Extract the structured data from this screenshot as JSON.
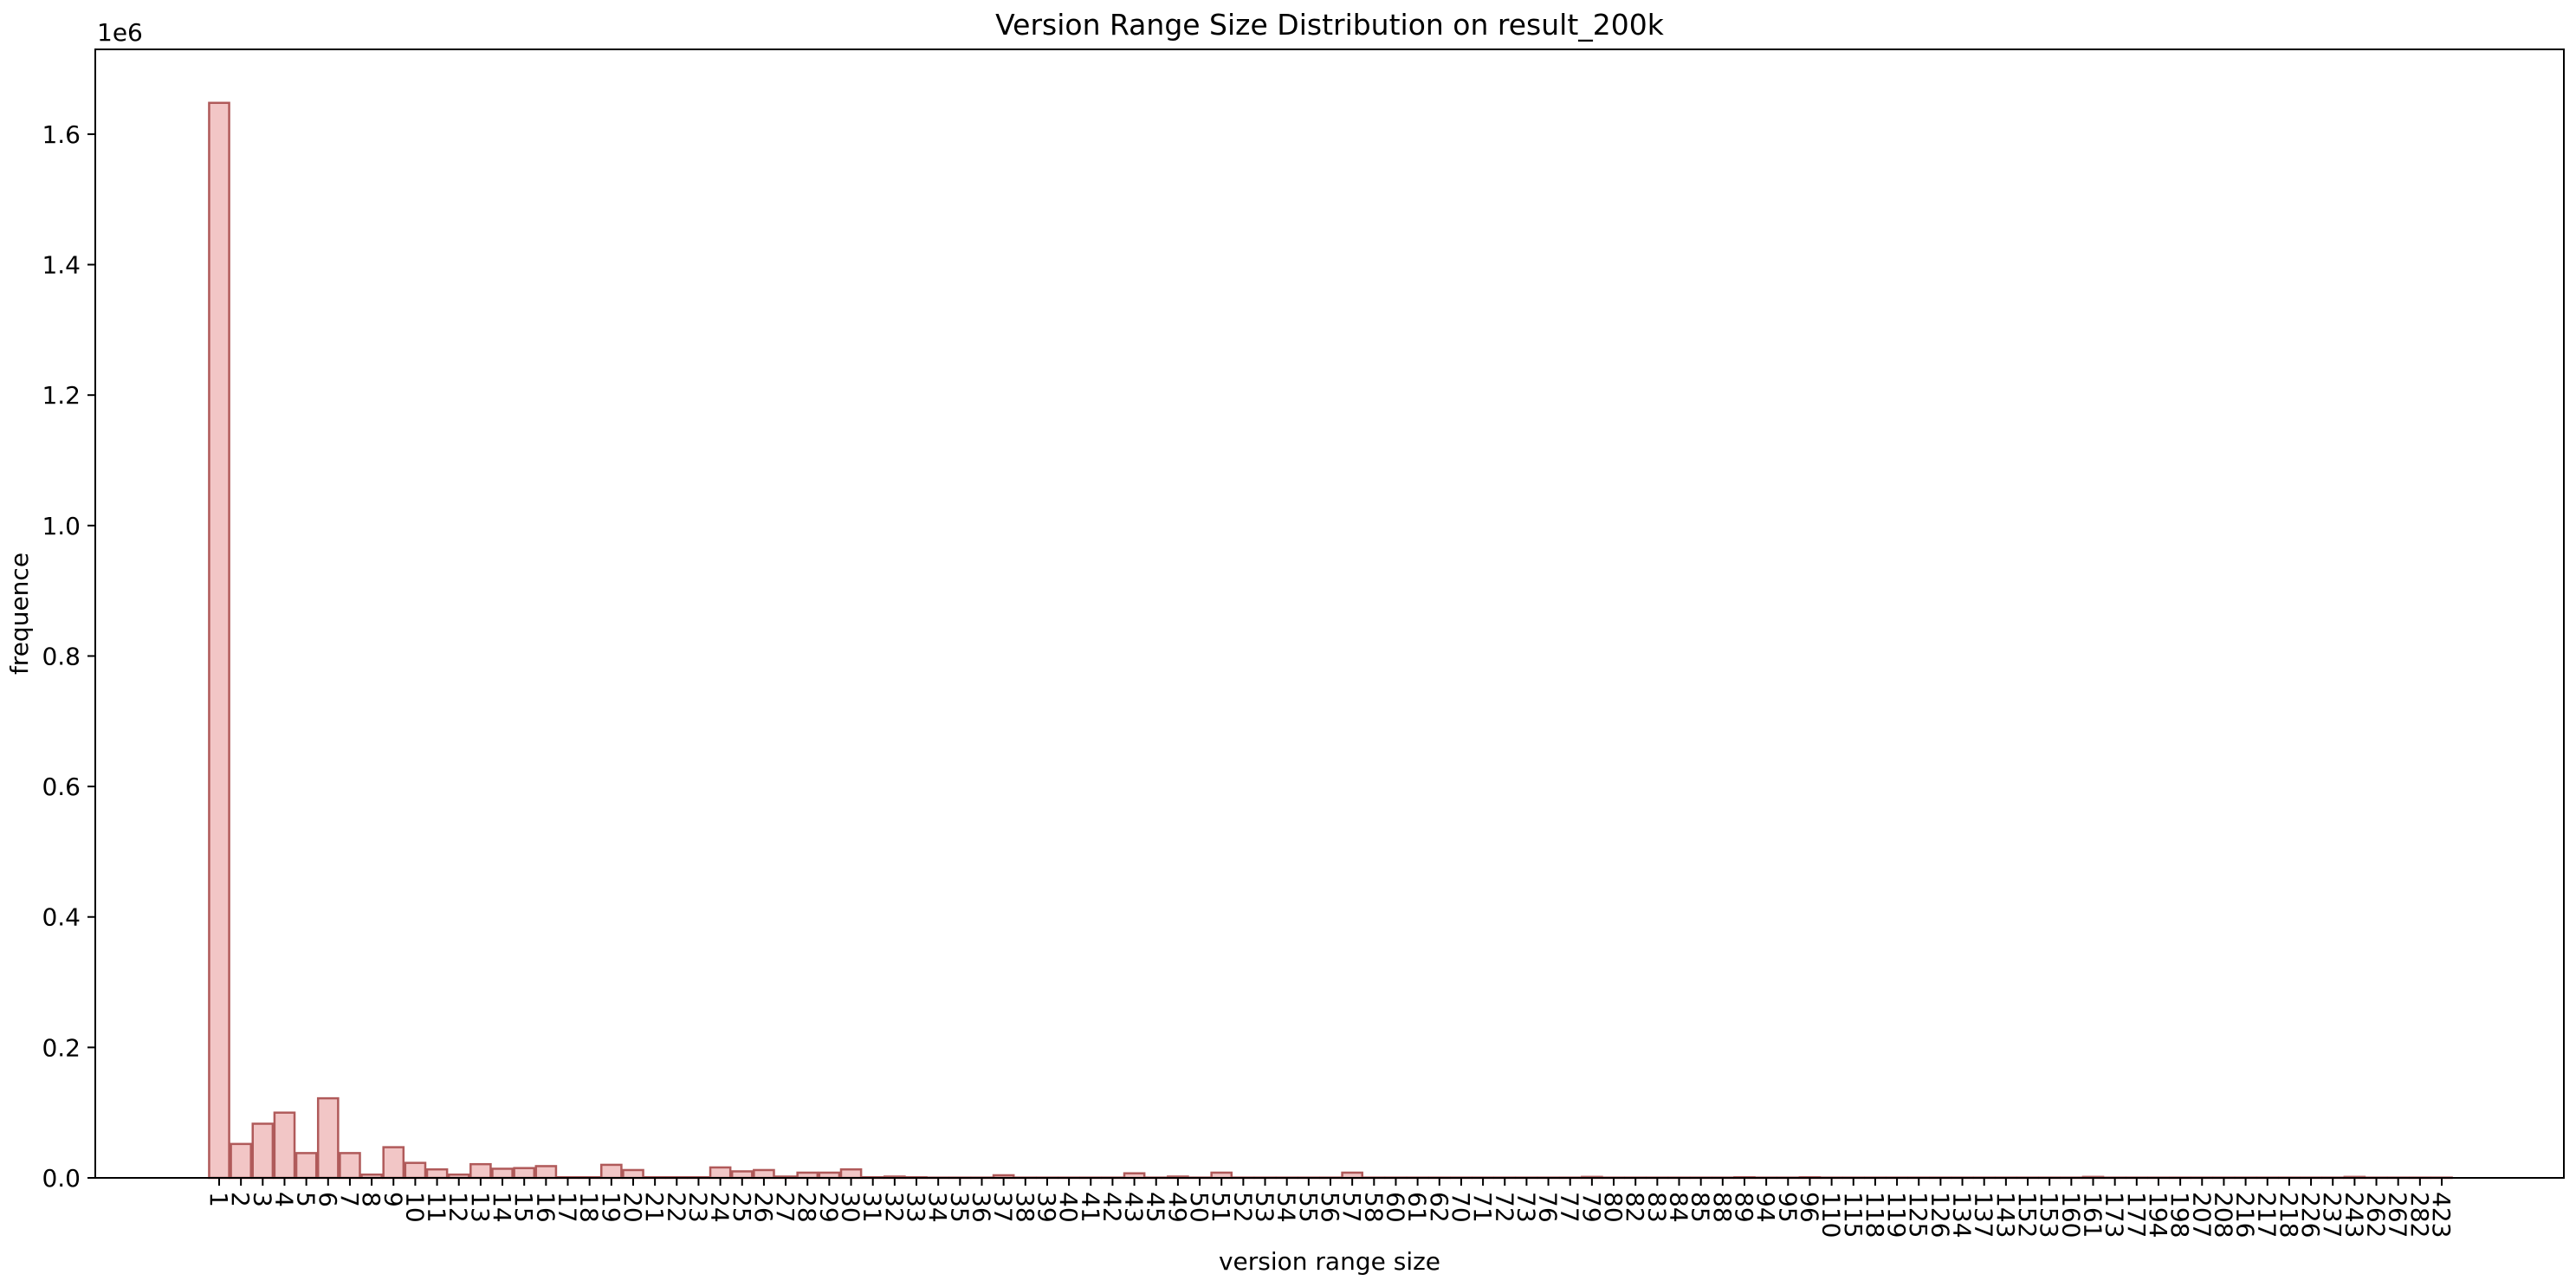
{
  "chart_data": {
    "type": "bar",
    "title": "Version Range Size Distribution on result_200k",
    "xlabel": "version range size",
    "ylabel": "frequence",
    "y_offset_label": "1e6",
    "y_scale": 1000000,
    "ylim": [
      0,
      1730000
    ],
    "yticks": [
      0,
      200000,
      400000,
      600000,
      800000,
      1000000,
      1200000,
      1400000,
      1600000
    ],
    "ytick_labels": [
      "0.0",
      "0.2",
      "0.4",
      "0.6",
      "0.8",
      "1.0",
      "1.2",
      "1.4",
      "1.6"
    ],
    "grid": false,
    "bar_fill": "#f2c6c6",
    "bar_edge": "#b05a5a",
    "categories": [
      "1",
      "2",
      "3",
      "4",
      "5",
      "6",
      "7",
      "8",
      "9",
      "10",
      "11",
      "12",
      "13",
      "14",
      "15",
      "16",
      "17",
      "18",
      "19",
      "20",
      "21",
      "22",
      "23",
      "24",
      "25",
      "26",
      "27",
      "28",
      "29",
      "30",
      "31",
      "32",
      "33",
      "34",
      "35",
      "36",
      "37",
      "38",
      "39",
      "40",
      "41",
      "42",
      "43",
      "45",
      "49",
      "50",
      "51",
      "52",
      "53",
      "54",
      "55",
      "56",
      "57",
      "58",
      "60",
      "61",
      "62",
      "70",
      "71",
      "72",
      "73",
      "76",
      "77",
      "79",
      "80",
      "82",
      "83",
      "84",
      "85",
      "88",
      "89",
      "94",
      "95",
      "96",
      "110",
      "115",
      "118",
      "119",
      "125",
      "126",
      "134",
      "137",
      "143",
      "152",
      "153",
      "160",
      "161",
      "173",
      "177",
      "194",
      "198",
      "207",
      "208",
      "216",
      "217",
      "218",
      "226",
      "237",
      "243",
      "262",
      "267",
      "282",
      "423"
    ],
    "values": [
      1648000,
      52000,
      83000,
      100000,
      38000,
      122000,
      38000,
      5000,
      47000,
      23000,
      13000,
      5000,
      21000,
      14000,
      15000,
      18000,
      1000,
      1000,
      20000,
      12000,
      1000,
      1000,
      1000,
      16000,
      10000,
      12000,
      2000,
      8000,
      8000,
      13000,
      1000,
      2000,
      1000,
      500,
      500,
      500,
      4000,
      500,
      500,
      500,
      500,
      500,
      7000,
      500,
      2000,
      500,
      8000,
      500,
      500,
      500,
      500,
      500,
      8000,
      500,
      500,
      500,
      500,
      500,
      500,
      500,
      500,
      500,
      500,
      1500,
      500,
      500,
      500,
      500,
      500,
      500,
      1000,
      500,
      500,
      1000,
      500,
      500,
      500,
      500,
      500,
      500,
      500,
      500,
      500,
      500,
      500,
      500,
      1500,
      500,
      500,
      500,
      500,
      500,
      500,
      500,
      500,
      500,
      500,
      500,
      1500,
      500,
      500,
      500,
      500
    ]
  }
}
